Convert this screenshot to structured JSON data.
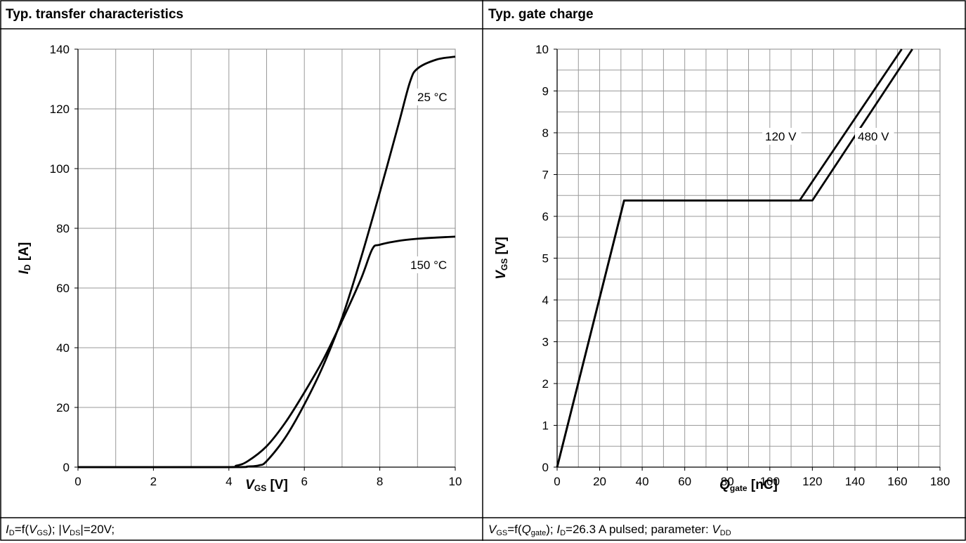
{
  "panels": [
    {
      "header": "Typ. transfer characteristics",
      "footer_parts": [
        {
          "t": "I",
          "i": true
        },
        {
          "t": "D",
          "s": true
        },
        {
          "t": "=f("
        },
        {
          "t": "V",
          "i": true
        },
        {
          "t": "GS",
          "s": true
        },
        {
          "t": "); |"
        },
        {
          "t": "V",
          "i": true
        },
        {
          "t": "DS",
          "s": true
        },
        {
          "t": "|=20V;"
        }
      ]
    },
    {
      "header": "Typ. gate charge",
      "footer_parts": [
        {
          "t": "V",
          "i": true
        },
        {
          "t": "GS",
          "s": true
        },
        {
          "t": "=f("
        },
        {
          "t": "Q",
          "i": true
        },
        {
          "t": "gate",
          "s": true
        },
        {
          "t": "); "
        },
        {
          "t": "I",
          "i": true
        },
        {
          "t": "D",
          "s": true
        },
        {
          "t": "=26.3 A pulsed; parameter: "
        },
        {
          "t": "V",
          "i": true
        },
        {
          "t": "DD",
          "s": true
        }
      ]
    }
  ],
  "chart_data": [
    {
      "type": "line",
      "title": "Typ. transfer characteristics",
      "xlabel": {
        "symbol": "V",
        "sub": "GS",
        "unit": "[V]"
      },
      "ylabel": {
        "symbol": "I",
        "sub": "D",
        "unit": "[A]"
      },
      "xlim": [
        0,
        10
      ],
      "ylim": [
        0,
        140
      ],
      "xticks": [
        0,
        2,
        4,
        6,
        8,
        10
      ],
      "yticks": [
        0,
        20,
        40,
        60,
        80,
        100,
        120,
        140
      ],
      "x_minor_step": 1,
      "y_minor_step": 20,
      "grid": true,
      "series": [
        {
          "name": "25 °C",
          "x": [
            0,
            4.0,
            4.5,
            4.8,
            5.0,
            5.5,
            6.0,
            6.5,
            7.0,
            7.5,
            8.0,
            8.5,
            8.8,
            9.0,
            9.5,
            10.0
          ],
          "y": [
            0,
            0,
            0.2,
            0.6,
            2,
            10,
            21,
            34,
            50,
            70,
            92,
            115,
            129,
            133.5,
            136.5,
            137.5
          ]
        },
        {
          "name": "150 °C",
          "x": [
            0,
            3.8,
            4.2,
            4.5,
            5.0,
            5.5,
            6.0,
            6.5,
            7.0,
            7.5,
            7.8,
            8.0,
            8.5,
            9.0,
            9.5,
            10.0
          ],
          "y": [
            0,
            0,
            0.5,
            2,
            7,
            15,
            25,
            36,
            49,
            63,
            73,
            74.5,
            75.8,
            76.5,
            76.9,
            77.2
          ]
        }
      ]
    },
    {
      "type": "line",
      "title": "Typ. gate charge",
      "xlabel": {
        "symbol": "Q",
        "sub": "gate",
        "unit": "[nC]"
      },
      "ylabel": {
        "symbol": "V",
        "sub": "GS",
        "unit": "[V]"
      },
      "xlim": [
        0,
        180
      ],
      "ylim": [
        0,
        10
      ],
      "xticks": [
        0,
        20,
        40,
        60,
        80,
        100,
        120,
        140,
        160,
        180
      ],
      "yticks": [
        0,
        1,
        2,
        3,
        4,
        5,
        6,
        7,
        8,
        9,
        10
      ],
      "x_minor_step": 10,
      "y_minor_step": 0.5,
      "grid": true,
      "series": [
        {
          "name": "120 V",
          "x": [
            0,
            31.5,
            114,
            162
          ],
          "y": [
            0,
            6.38,
            6.38,
            10
          ]
        },
        {
          "name": "480 V",
          "x": [
            0,
            31.5,
            120,
            167
          ],
          "y": [
            0,
            6.38,
            6.38,
            10
          ]
        }
      ]
    }
  ]
}
